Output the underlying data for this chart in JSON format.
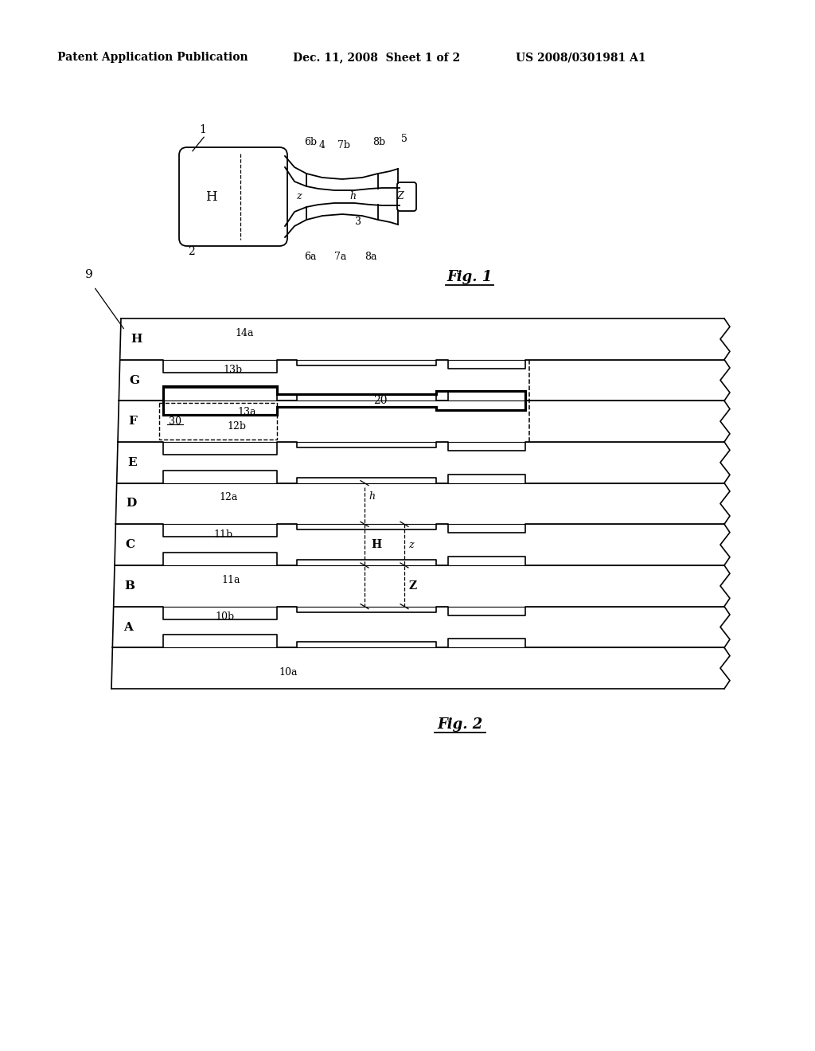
{
  "bg_color": "#ffffff",
  "header_left": "Patent Application Publication",
  "header_mid": "Dec. 11, 2008  Sheet 1 of 2",
  "header_right": "US 2008/0301981 A1",
  "fig1_caption": "Fig. 1",
  "fig2_caption": "Fig. 2"
}
